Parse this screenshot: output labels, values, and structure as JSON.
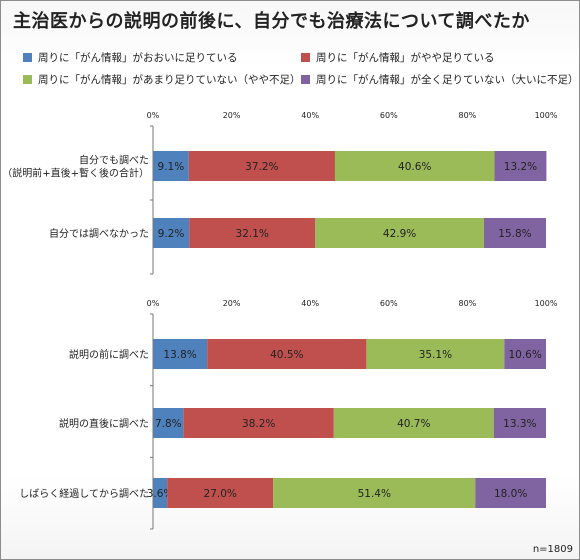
{
  "title": "主治医からの説明の前後に、自分でも治療法について調べたか",
  "legend": [
    {
      "label": "周りに「がん情報」がおおいに足りている",
      "color": "#4f81bd"
    },
    {
      "label": "周りに「がん情報」がやや足りている",
      "color": "#c0504d"
    },
    {
      "label": "周りに「がん情報」があまり足りていない（やや不足）",
      "color": "#9bbb59"
    },
    {
      "label": "周りに「がん情報」が全く足りていない（大いに不足）",
      "color": "#8064a2"
    }
  ],
  "note": "n=1809",
  "chart_data": [
    {
      "type": "bar",
      "orientation": "horizontal",
      "stacked": true,
      "xlim": [
        0,
        100
      ],
      "xticks": [
        "0%",
        "20%",
        "40%",
        "60%",
        "80%",
        "100%"
      ],
      "categories": [
        [
          "自分でも調べた",
          "（説明前+直後+暫く後の合計）"
        ],
        [
          "自分では調べなかった"
        ]
      ],
      "series": [
        {
          "name": "周りに「がん情報」がおおいに足りている",
          "values": [
            9.1,
            9.2
          ]
        },
        {
          "name": "周りに「がん情報」がやや足りている",
          "values": [
            37.2,
            32.1
          ]
        },
        {
          "name": "周りに「がん情報」があまり足りていない（やや不足）",
          "values": [
            40.6,
            42.9
          ]
        },
        {
          "name": "周りに「がん情報」が全く足りていない（大いに不足）",
          "values": [
            13.2,
            15.8
          ]
        }
      ],
      "labels": [
        [
          "9.1%",
          "37.2%",
          "40.6%",
          "13.2%"
        ],
        [
          "9.2%",
          "32.1%",
          "42.9%",
          "15.8%"
        ]
      ]
    },
    {
      "type": "bar",
      "orientation": "horizontal",
      "stacked": true,
      "xlim": [
        0,
        100
      ],
      "xticks": [
        "0%",
        "20%",
        "40%",
        "60%",
        "80%",
        "100%"
      ],
      "categories": [
        [
          "説明の前に調べた"
        ],
        [
          "説明の直後に調べた"
        ],
        [
          "しばらく経過してから調べた"
        ]
      ],
      "series": [
        {
          "name": "周りに「がん情報」がおおいに足りている",
          "values": [
            13.8,
            7.8,
            3.6
          ]
        },
        {
          "name": "周りに「がん情報」がやや足りている",
          "values": [
            40.5,
            38.2,
            27.0
          ]
        },
        {
          "name": "周りに「がん情報」があまり足りていない（やや不足）",
          "values": [
            35.1,
            40.7,
            51.4
          ]
        },
        {
          "name": "周りに「がん情報」が全く足りていない（大いに不足）",
          "values": [
            10.6,
            13.3,
            18.0
          ]
        }
      ],
      "labels": [
        [
          "13.8%",
          "40.5%",
          "35.1%",
          "10.6%"
        ],
        [
          "7.8%",
          "38.2%",
          "40.7%",
          "13.3%"
        ],
        [
          "3.6%",
          "27.0%",
          "51.4%",
          "18.0%"
        ]
      ]
    }
  ]
}
